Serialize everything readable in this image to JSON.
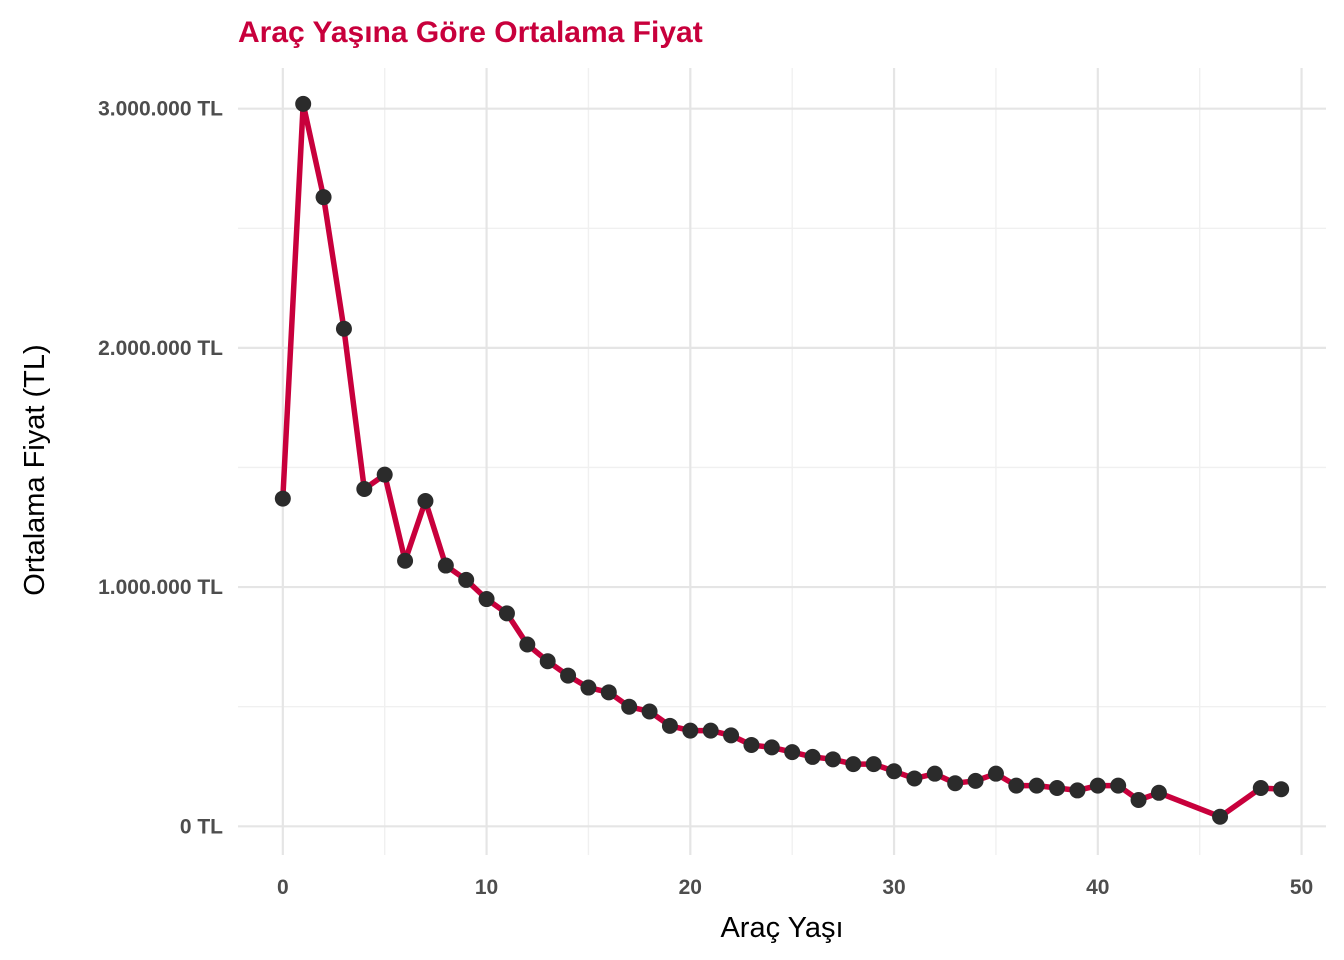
{
  "colors": {
    "title": "#C8003C",
    "line": "#C8003C",
    "points": "#2b2b2b"
  },
  "chart_data": {
    "type": "line",
    "title": "Araç Yaşına Göre Ortalama Fiyat",
    "xlabel": "Araç Yaşı",
    "ylabel": "Ortalama Fiyat (TL)",
    "xlim": [
      -2.2,
      51.2
    ],
    "ylim": [
      -120000,
      3170000
    ],
    "x_ticks": [
      0,
      10,
      20,
      30,
      40,
      50
    ],
    "x_tick_labels": [
      "0",
      "10",
      "20",
      "30",
      "40",
      "50"
    ],
    "y_ticks": [
      0,
      1000000,
      2000000,
      3000000
    ],
    "y_tick_labels": [
      "0 TL",
      "1.000.000 TL",
      "2.000.000 TL",
      "3.000.000 TL"
    ],
    "grid": true,
    "series": [
      {
        "x": [
          0,
          1,
          2,
          3,
          4,
          5,
          6,
          7,
          8,
          9,
          10,
          11,
          12,
          13,
          14,
          15,
          16,
          17,
          18,
          19,
          20,
          21,
          22,
          23,
          24,
          25,
          26,
          27,
          28,
          29,
          30,
          31,
          32,
          33,
          34,
          35,
          36,
          37,
          38,
          39,
          40,
          41,
          42,
          43,
          46,
          48,
          49
        ],
        "y": [
          1370000,
          3020000,
          2630000,
          2080000,
          1410000,
          1470000,
          1110000,
          1360000,
          1090000,
          1030000,
          950000,
          890000,
          760000,
          690000,
          630000,
          580000,
          560000,
          500000,
          480000,
          420000,
          400000,
          400000,
          380000,
          340000,
          330000,
          310000,
          290000,
          280000,
          260000,
          260000,
          230000,
          200000,
          220000,
          180000,
          190000,
          220000,
          170000,
          170000,
          160000,
          150000,
          170000,
          170000,
          110000,
          140000,
          40000,
          160000,
          155000
        ]
      }
    ]
  }
}
